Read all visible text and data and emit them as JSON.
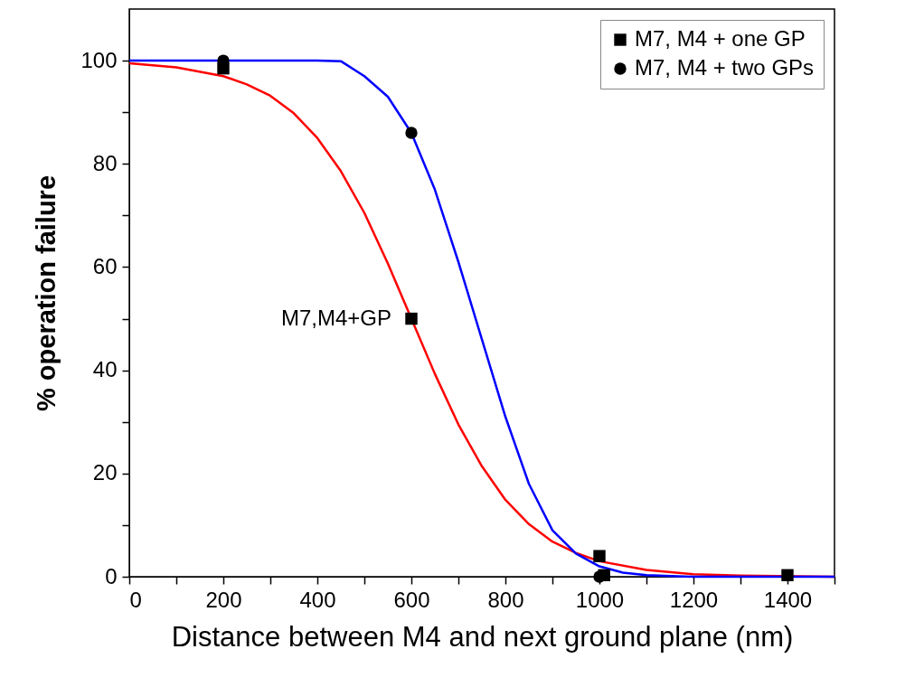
{
  "chart_data": {
    "type": "scatter",
    "xlabel": "Distance between M4 and next ground plane (nm)",
    "ylabel": "% operation failure",
    "xlim": [
      0,
      1500
    ],
    "ylim": [
      0,
      110
    ],
    "xticks": [
      0,
      {
        "value": 100,
        "label": null
      },
      200,
      {
        "value": 300,
        "label": null
      },
      400,
      {
        "value": 500,
        "label": null
      },
      600,
      {
        "value": 700,
        "label": null
      },
      800,
      {
        "value": 900,
        "label": null
      },
      1000,
      {
        "value": 1100,
        "label": null
      },
      1200,
      {
        "value": 1300,
        "label": null
      },
      1400,
      {
        "value": 1500,
        "label": null
      }
    ],
    "yticks": [
      0,
      {
        "value": 10,
        "label": null
      },
      20,
      {
        "value": 30,
        "label": null
      },
      40,
      {
        "value": 50,
        "label": null
      },
      60,
      {
        "value": 70,
        "label": null
      },
      80,
      {
        "value": 90,
        "label": null
      },
      100
    ],
    "legend": "top right",
    "series": [
      {
        "name": "M7, M4 + one GP",
        "marker": "square",
        "color": "#000000",
        "x": [
          200,
          600,
          1000,
          1010,
          1400
        ],
        "values": [
          98.5,
          50,
          4,
          0.3,
          0.3
        ]
      },
      {
        "name": "M7, M4 + two GPs",
        "marker": "circle",
        "color": "#000000",
        "x": [
          200,
          600,
          1000
        ],
        "values": [
          100,
          86,
          0
        ]
      },
      {
        "type": "line",
        "color": "#ff0000",
        "x": [
          0,
          100,
          200,
          250,
          300,
          350,
          400,
          450,
          500,
          550,
          600,
          650,
          700,
          750,
          800,
          850,
          900,
          950,
          1000,
          1100,
          1200,
          1300,
          1500
        ],
        "values": [
          99.5,
          98.7,
          97,
          95.4,
          93.2,
          89.8,
          85,
          78.6,
          70.5,
          60.7,
          50,
          39.3,
          29.5,
          21.4,
          14.9,
          10.2,
          6.8,
          4.6,
          3,
          1.3,
          0.5,
          0.2,
          0
        ]
      },
      {
        "type": "line",
        "color": "#0000ff",
        "x": [
          0,
          200,
          400,
          450,
          500,
          550,
          600,
          650,
          700,
          750,
          800,
          850,
          900,
          950,
          1000,
          1050,
          1100,
          1200,
          1500
        ],
        "values": [
          100,
          100,
          100,
          99.9,
          97,
          93,
          86,
          75,
          61,
          46,
          31,
          18,
          9,
          4.5,
          2,
          0.8,
          0.3,
          0,
          0
        ]
      }
    ],
    "annotations": [
      {
        "text": "M7,M4+GP",
        "x": 600,
        "y": 50
      }
    ]
  }
}
